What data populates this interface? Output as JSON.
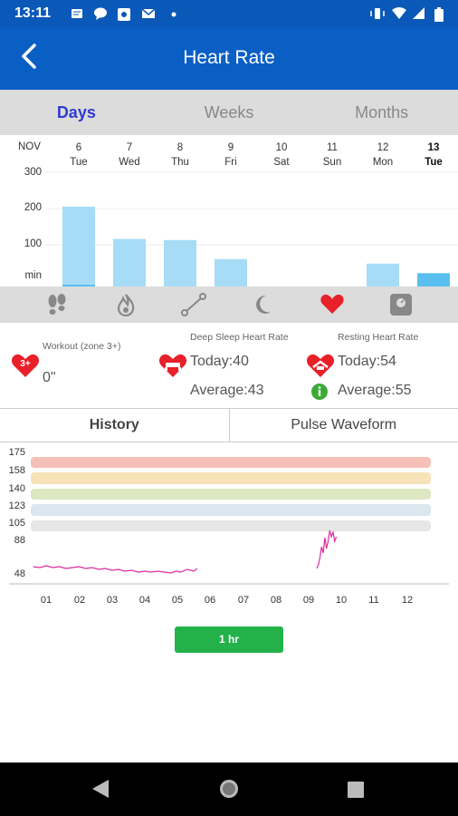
{
  "status_bar": {
    "time": "13:11"
  },
  "header": {
    "title": "Heart Rate"
  },
  "tabs": [
    {
      "label": "Days"
    },
    {
      "label": "Weeks"
    },
    {
      "label": "Months"
    }
  ],
  "day_chart": {
    "month": "NOV",
    "days": [
      {
        "date": "6",
        "weekday": "Tue"
      },
      {
        "date": "7",
        "weekday": "Wed"
      },
      {
        "date": "8",
        "weekday": "Thu"
      },
      {
        "date": "9",
        "weekday": "Fri"
      },
      {
        "date": "10",
        "weekday": "Sat"
      },
      {
        "date": "11",
        "weekday": "Sun"
      },
      {
        "date": "12",
        "weekday": "Mon"
      },
      {
        "date": "13",
        "weekday": "Tue"
      }
    ],
    "y_labels": [
      "300",
      "200",
      "100",
      "min"
    ]
  },
  "chart_data": [
    {
      "type": "bar",
      "categories": [
        "6 Tue",
        "7 Wed",
        "8 Thu",
        "9 Fri",
        "10 Sat",
        "11 Sun",
        "12 Mon",
        "13 Tue"
      ],
      "values": [
        210,
        125,
        122,
        72,
        0,
        0,
        60,
        35
      ],
      "ylim": [
        0,
        300
      ],
      "colors": {
        "bar": "#a7dcf6",
        "selected": "#59bff0"
      }
    },
    {
      "type": "line",
      "title": "History",
      "y_ticks": [
        "175",
        "158",
        "140",
        "123",
        "105",
        "88",
        "48"
      ],
      "x_ticks": [
        "01",
        "02",
        "03",
        "04",
        "05",
        "06",
        "07",
        "08",
        "09",
        "10",
        "11",
        "12"
      ],
      "ylim": [
        35,
        175
      ],
      "zones": [
        {
          "from": 158,
          "to": 175,
          "color": "#f5c0b8"
        },
        {
          "from": 140,
          "to": 158,
          "color": "#f8e2b8"
        },
        {
          "from": 123,
          "to": 140,
          "color": "#dde7c2"
        },
        {
          "from": 105,
          "to": 123,
          "color": "#dae7ee"
        },
        {
          "from": 88,
          "to": 105,
          "color": "#e6e6e6"
        }
      ],
      "series": [
        {
          "color": "#e02ba0",
          "points": [
            [
              0.6,
              50
            ],
            [
              0.8,
              49
            ],
            [
              1.0,
              51
            ],
            [
              1.2,
              49
            ],
            [
              1.4,
              50
            ],
            [
              1.6,
              48
            ],
            [
              1.8,
              49
            ],
            [
              2.0,
              50
            ],
            [
              2.2,
              48
            ],
            [
              2.4,
              49
            ],
            [
              2.6,
              47
            ],
            [
              2.8,
              48
            ],
            [
              3.0,
              46
            ],
            [
              3.2,
              47
            ],
            [
              3.4,
              45
            ],
            [
              3.6,
              46
            ],
            [
              3.8,
              44
            ],
            [
              4.0,
              45
            ],
            [
              4.2,
              44
            ],
            [
              4.4,
              45
            ],
            [
              4.6,
              44
            ],
            [
              4.8,
              43
            ],
            [
              4.95,
              45
            ],
            [
              5.1,
              44
            ],
            [
              5.3,
              47
            ],
            [
              5.5,
              45
            ],
            [
              5.6,
              48
            ]
          ]
        },
        {
          "color": "#e02ba0",
          "points": [
            [
              9.25,
              48
            ],
            [
              9.3,
              52
            ],
            [
              9.35,
              60
            ],
            [
              9.4,
              72
            ],
            [
              9.45,
              65
            ],
            [
              9.5,
              82
            ],
            [
              9.55,
              70
            ],
            [
              9.6,
              78
            ],
            [
              9.65,
              90
            ],
            [
              9.7,
              83
            ],
            [
              9.75,
              88
            ],
            [
              9.8,
              78
            ],
            [
              9.85,
              83
            ]
          ]
        }
      ]
    }
  ],
  "stats": {
    "workout": {
      "label": "Workout (zone 3+)",
      "value": "0\"",
      "badge": "3+"
    },
    "deep_sleep": {
      "label": "Deep Sleep Heart Rate",
      "today": "Today:40",
      "average": "Average:43"
    },
    "resting": {
      "label": "Resting Heart Rate",
      "today": "Today:54",
      "average": "Average:55"
    }
  },
  "history_tabs": [
    {
      "label": "History"
    },
    {
      "label": "Pulse Waveform"
    }
  ],
  "range_button": {
    "label": "1 hr"
  },
  "colors": {
    "primary": "#0a5fc5",
    "accent": "#2f3bd0",
    "heart": "#e8202a",
    "button": "#23b24a"
  }
}
